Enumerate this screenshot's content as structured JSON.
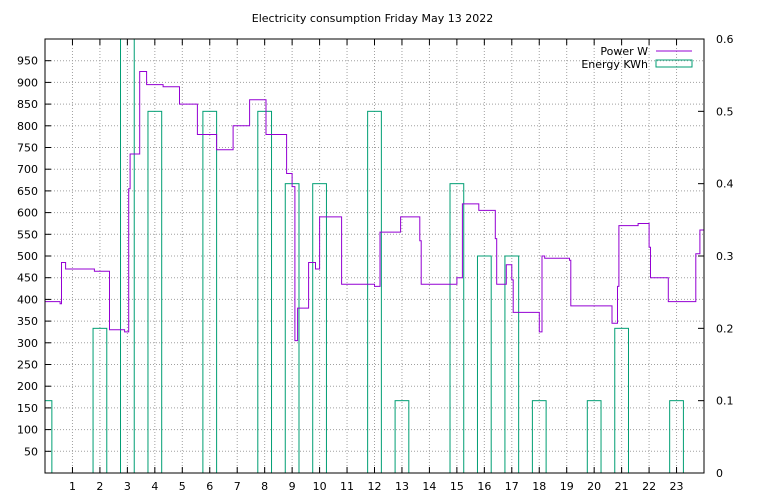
{
  "chart_data": {
    "type": "step-line-and-bar",
    "title": "Electricity consumption Friday May 13 2022",
    "x": {
      "min": 0,
      "max": 24,
      "ticks": [
        1,
        2,
        3,
        4,
        5,
        6,
        7,
        8,
        9,
        10,
        11,
        12,
        13,
        14,
        15,
        16,
        17,
        18,
        19,
        20,
        21,
        22,
        23
      ]
    },
    "y_left": {
      "min": 0,
      "max": 1000,
      "ticks": [
        50,
        100,
        150,
        200,
        250,
        300,
        350,
        400,
        450,
        500,
        550,
        600,
        650,
        700,
        750,
        800,
        850,
        900,
        950
      ]
    },
    "y_right": {
      "min": 0,
      "max": 0.6,
      "ticks": [
        0,
        0.1,
        0.2,
        0.3,
        0.4,
        0.5,
        0.6
      ]
    },
    "grid": true,
    "legend_position": "top-right",
    "series": [
      {
        "name": "Power W",
        "type": "step-line",
        "axis": "left",
        "color": "#9400d3",
        "points": [
          [
            0,
            395
          ],
          [
            0.55,
            395
          ],
          [
            0.55,
            390
          ],
          [
            0.6,
            390
          ],
          [
            0.6,
            485
          ],
          [
            0.75,
            485
          ],
          [
            0.75,
            470
          ],
          [
            1.8,
            470
          ],
          [
            1.8,
            465
          ],
          [
            2.35,
            465
          ],
          [
            2.35,
            330
          ],
          [
            2.9,
            330
          ],
          [
            2.9,
            325
          ],
          [
            3.05,
            325
          ],
          [
            3.05,
            655
          ],
          [
            3.1,
            655
          ],
          [
            3.1,
            735
          ],
          [
            3.45,
            735
          ],
          [
            3.45,
            925
          ],
          [
            3.7,
            925
          ],
          [
            3.7,
            895
          ],
          [
            4.3,
            895
          ],
          [
            4.3,
            890
          ],
          [
            4.9,
            890
          ],
          [
            4.9,
            850
          ],
          [
            5.55,
            850
          ],
          [
            5.55,
            780
          ],
          [
            6.25,
            780
          ],
          [
            6.25,
            745
          ],
          [
            6.85,
            745
          ],
          [
            6.85,
            800
          ],
          [
            7.45,
            800
          ],
          [
            7.45,
            860
          ],
          [
            8.05,
            860
          ],
          [
            8.05,
            780
          ],
          [
            8.8,
            780
          ],
          [
            8.8,
            690
          ],
          [
            9.0,
            690
          ],
          [
            9.0,
            660
          ],
          [
            9.1,
            660
          ],
          [
            9.1,
            305
          ],
          [
            9.2,
            305
          ],
          [
            9.2,
            380
          ],
          [
            9.6,
            380
          ],
          [
            9.6,
            485
          ],
          [
            9.85,
            485
          ],
          [
            9.85,
            470
          ],
          [
            10.0,
            470
          ],
          [
            10.0,
            590
          ],
          [
            10.8,
            590
          ],
          [
            10.8,
            435
          ],
          [
            12.0,
            435
          ],
          [
            12.0,
            430
          ],
          [
            12.2,
            430
          ],
          [
            12.2,
            555
          ],
          [
            12.95,
            555
          ],
          [
            12.95,
            590
          ],
          [
            13.65,
            590
          ],
          [
            13.65,
            535
          ],
          [
            13.7,
            535
          ],
          [
            13.7,
            435
          ],
          [
            15.0,
            435
          ],
          [
            15.0,
            450
          ],
          [
            15.2,
            450
          ],
          [
            15.2,
            620
          ],
          [
            15.8,
            620
          ],
          [
            15.8,
            605
          ],
          [
            16.4,
            605
          ],
          [
            16.4,
            540
          ],
          [
            16.45,
            540
          ],
          [
            16.45,
            435
          ],
          [
            16.8,
            435
          ],
          [
            16.8,
            480
          ],
          [
            17.0,
            480
          ],
          [
            17.0,
            445
          ],
          [
            17.05,
            445
          ],
          [
            17.05,
            370
          ],
          [
            18.0,
            370
          ],
          [
            18.0,
            325
          ],
          [
            18.1,
            325
          ],
          [
            18.1,
            500
          ],
          [
            18.2,
            500
          ],
          [
            18.2,
            495
          ],
          [
            19.1,
            495
          ],
          [
            19.1,
            490
          ],
          [
            19.15,
            490
          ],
          [
            19.15,
            385
          ],
          [
            20.65,
            385
          ],
          [
            20.65,
            345
          ],
          [
            20.85,
            345
          ],
          [
            20.85,
            430
          ],
          [
            20.9,
            430
          ],
          [
            20.9,
            570
          ],
          [
            21.6,
            570
          ],
          [
            21.6,
            575
          ],
          [
            22.0,
            575
          ],
          [
            22.0,
            520
          ],
          [
            22.05,
            520
          ],
          [
            22.05,
            450
          ],
          [
            22.7,
            450
          ],
          [
            22.7,
            395
          ],
          [
            23.7,
            395
          ],
          [
            23.7,
            505
          ],
          [
            23.85,
            505
          ],
          [
            23.85,
            560
          ],
          [
            24,
            560
          ]
        ]
      },
      {
        "name": "Energy KWh",
        "type": "bar",
        "axis": "right",
        "color": "#009e73",
        "bar_width": 0.5,
        "x": [
          0,
          1,
          2,
          3,
          4,
          5,
          6,
          7,
          8,
          9,
          10,
          11,
          12,
          13,
          14,
          15,
          16,
          17,
          18,
          19,
          20,
          21,
          22,
          23
        ],
        "values": [
          0.1,
          0,
          0.2,
          0.6,
          0.5,
          0,
          0.5,
          0,
          0.5,
          0.4,
          0.4,
          0,
          0.5,
          0.1,
          0,
          0.4,
          0.3,
          0.3,
          0.1,
          0,
          0.1,
          0.2,
          0,
          0.1
        ]
      }
    ]
  }
}
